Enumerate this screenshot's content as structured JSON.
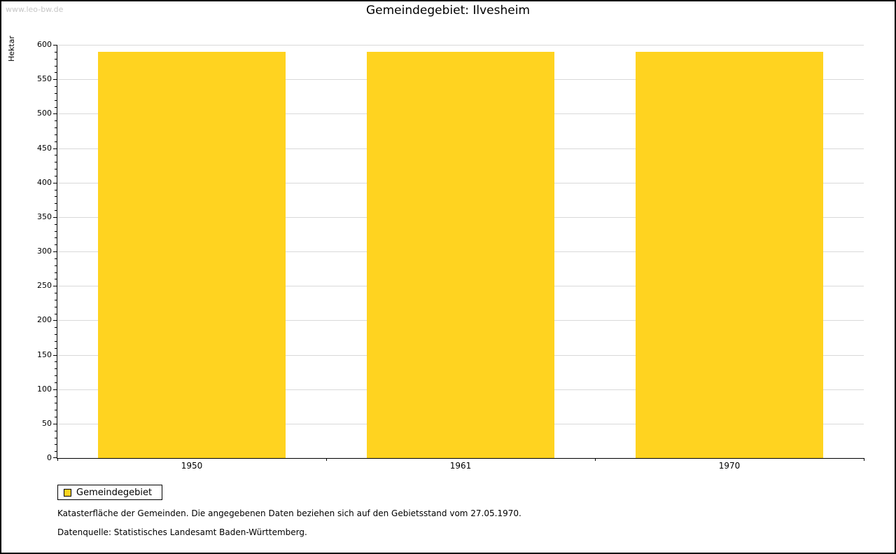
{
  "watermark": "www.leo-bw.de",
  "chart_data": {
    "type": "bar",
    "title": "Gemeindegebiet: Ilvesheim",
    "categories": [
      "1950",
      "1961",
      "1970"
    ],
    "series": [
      {
        "name": "Gemeindegebiet",
        "values": [
          590,
          590,
          590
        ]
      }
    ],
    "xlabel": "",
    "ylabel": "Hektar",
    "ylim": [
      0,
      600
    ],
    "ytick_step": 50,
    "ytick_minor_step": 10,
    "grid": true,
    "legend_position": "bottom-left",
    "bar_color": "#FFD320",
    "grid_color": "#d9d9d9"
  },
  "footnotes": [
    "Katasterfläche der Gemeinden. Die angegebenen Daten beziehen sich auf den Gebietsstand vom 27.05.1970.",
    "Datenquelle: Statistisches Landesamt Baden-Württemberg."
  ]
}
